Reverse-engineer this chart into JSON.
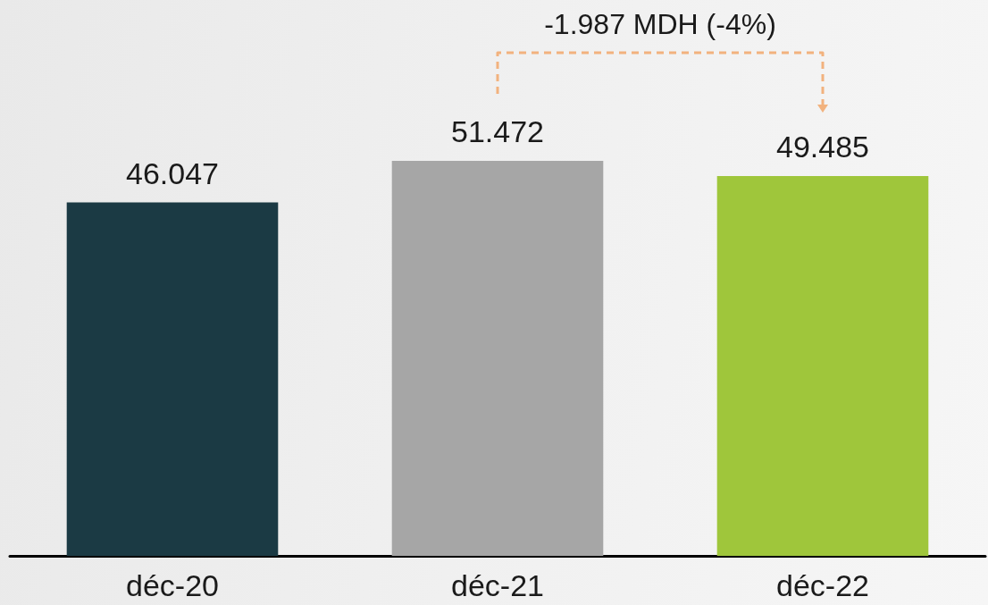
{
  "chart_data": {
    "type": "bar",
    "categories": [
      "déc-20",
      "déc-21",
      "déc-22"
    ],
    "values": [
      46.047,
      51.472,
      49.485
    ],
    "colors": [
      "#1b3a44",
      "#a6a6a6",
      "#9fc63b"
    ],
    "data_labels": true,
    "tick_labels": "x",
    "annotations": [
      "-1.987 MDH (-4%)"
    ]
  }
}
